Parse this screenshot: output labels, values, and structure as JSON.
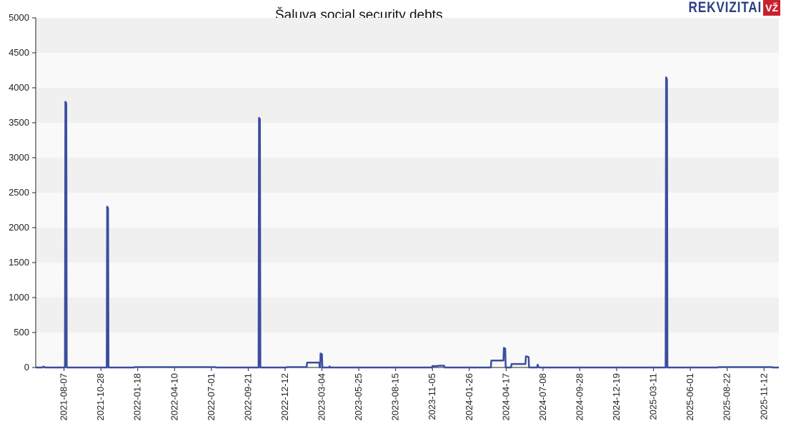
{
  "brand": {
    "word": "REKVIZITAI",
    "box": "VŽ",
    "color": "#2b3f85",
    "box_color": "#c8202c"
  },
  "chart_data": {
    "type": "line",
    "title": "Šaluva social security debts",
    "xlabel": "",
    "ylabel": "",
    "ylim": [
      0,
      5000
    ],
    "yticks": [
      0,
      500,
      1000,
      1500,
      2000,
      2500,
      3000,
      3500,
      4000,
      4500,
      5000
    ],
    "xlim": [
      "2021-06-05",
      "2025-12-15"
    ],
    "xticks": [
      "2021-08-07",
      "2021-10-28",
      "2022-01-18",
      "2022-04-10",
      "2022-07-01",
      "2022-09-21",
      "2022-12-12",
      "2023-03-04",
      "2023-05-25",
      "2023-08-15",
      "2023-11-05",
      "2024-01-26",
      "2024-04-17",
      "2024-07-08",
      "2024-09-28",
      "2024-12-19",
      "2025-03-11",
      "2025-06-01",
      "2025-08-22",
      "2025-11-12"
    ],
    "grid": "horizontal bands",
    "line_color": "#3a4ea0",
    "series": [
      {
        "values": [
          [
            "2021-06-05",
            0
          ],
          [
            "2021-06-20",
            0
          ],
          [
            "2021-06-21",
            10
          ],
          [
            "2021-06-24",
            10
          ],
          [
            "2021-06-25",
            0
          ],
          [
            "2021-08-09",
            0
          ],
          [
            "2021-08-10",
            3800
          ],
          [
            "2021-08-12",
            3780
          ],
          [
            "2021-08-13",
            0
          ],
          [
            "2021-11-10",
            0
          ],
          [
            "2021-11-11",
            2300
          ],
          [
            "2021-11-13",
            2280
          ],
          [
            "2021-11-14",
            0
          ],
          [
            "2022-01-10",
            0
          ],
          [
            "2022-01-11",
            5
          ],
          [
            "2022-07-10",
            5
          ],
          [
            "2022-07-11",
            0
          ],
          [
            "2022-10-14",
            0
          ],
          [
            "2022-10-15",
            3570
          ],
          [
            "2022-10-17",
            3550
          ],
          [
            "2022-10-18",
            0
          ],
          [
            "2022-12-15",
            0
          ],
          [
            "2022-12-16",
            5
          ],
          [
            "2023-01-29",
            5
          ],
          [
            "2023-01-30",
            70
          ],
          [
            "2023-02-26",
            70
          ],
          [
            "2023-02-27",
            0
          ],
          [
            "2023-02-28",
            0
          ],
          [
            "2023-03-01",
            200
          ],
          [
            "2023-03-04",
            190
          ],
          [
            "2023-03-05",
            0
          ],
          [
            "2023-03-20",
            0
          ],
          [
            "2023-03-21",
            15
          ],
          [
            "2023-03-23",
            0
          ],
          [
            "2023-11-04",
            0
          ],
          [
            "2023-11-05",
            20
          ],
          [
            "2023-11-16",
            20
          ],
          [
            "2023-11-17",
            25
          ],
          [
            "2023-12-01",
            25
          ],
          [
            "2023-12-02",
            0
          ],
          [
            "2024-03-14",
            0
          ],
          [
            "2024-03-15",
            100
          ],
          [
            "2024-04-11",
            100
          ],
          [
            "2024-04-12",
            280
          ],
          [
            "2024-04-15",
            270
          ],
          [
            "2024-04-16",
            0
          ],
          [
            "2024-04-28",
            0
          ],
          [
            "2024-04-29",
            50
          ],
          [
            "2024-05-30",
            50
          ],
          [
            "2024-05-31",
            160
          ],
          [
            "2024-06-06",
            150
          ],
          [
            "2024-06-07",
            0
          ],
          [
            "2024-06-25",
            0
          ],
          [
            "2024-06-26",
            40
          ],
          [
            "2024-06-29",
            0
          ],
          [
            "2025-04-07",
            0
          ],
          [
            "2025-04-08",
            4150
          ],
          [
            "2025-04-10",
            4120
          ],
          [
            "2025-04-11",
            0
          ],
          [
            "2025-08-01",
            0
          ],
          [
            "2025-08-02",
            5
          ],
          [
            "2025-11-30",
            5
          ],
          [
            "2025-12-01",
            0
          ],
          [
            "2025-12-15",
            0
          ]
        ]
      }
    ]
  }
}
